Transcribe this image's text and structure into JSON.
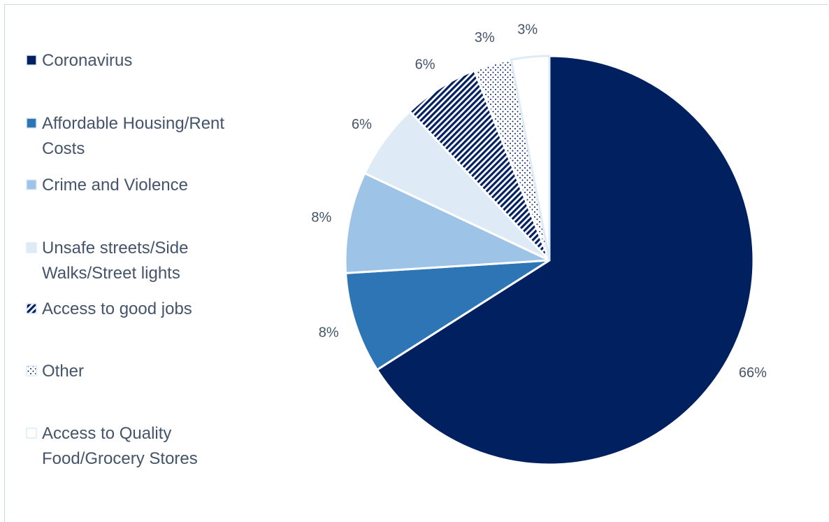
{
  "chart_data": {
    "type": "pie",
    "title": "",
    "start": "12 o'clock",
    "direction": "clockwise",
    "legend_placement": "left",
    "slices": [
      {
        "name": "Coronavirus",
        "legend_lines": [
          "Coronavirus"
        ],
        "value": 66,
        "label": "66%",
        "color": "#002060",
        "pattern": "solid"
      },
      {
        "name": "Affordable Housing/Rent Costs",
        "legend_lines": [
          "Affordable Housing/Rent",
          "Costs"
        ],
        "value": 8,
        "label": "8%",
        "color": "#2e75b6",
        "pattern": "solid"
      },
      {
        "name": "Crime and Violence",
        "legend_lines": [
          "Crime and Violence"
        ],
        "value": 8,
        "label": "8%",
        "color": "#9dc3e6",
        "pattern": "solid"
      },
      {
        "name": "Unsafe streets/Side Walks/Street lights",
        "legend_lines": [
          "Unsafe streets/Side",
          "Walks/Street lights"
        ],
        "value": 6,
        "label": "6%",
        "color": "#deebf7",
        "pattern": "solid"
      },
      {
        "name": "Access to good jobs",
        "legend_lines": [
          "Access to good jobs"
        ],
        "value": 6,
        "label": "6%",
        "color": "#002060",
        "pattern": "diagonal-stripes"
      },
      {
        "name": "Other",
        "legend_lines": [
          "Other"
        ],
        "value": 3,
        "label": "3%",
        "color": "#002060",
        "pattern": "dots"
      },
      {
        "name": "Access to Quality Food/Grocery Stores",
        "legend_lines": [
          "Access to Quality",
          "Food/Grocery Stores"
        ],
        "value": 3,
        "label": "3%",
        "color": "#ffffff",
        "pattern": "solid"
      }
    ]
  }
}
